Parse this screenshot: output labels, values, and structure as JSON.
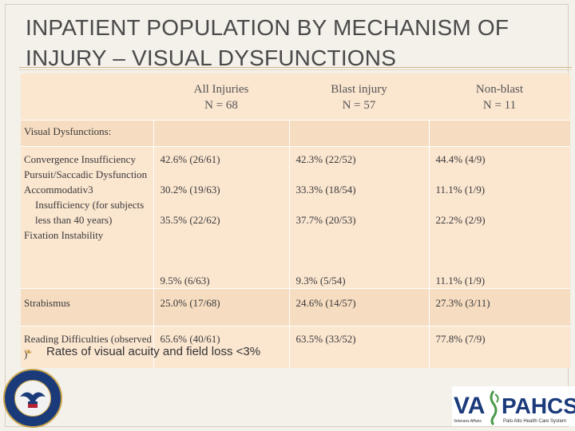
{
  "title": "INPATIENT POPULATION BY MECHANISM OF INJURY – VISUAL DYSFUNCTIONS",
  "table": {
    "headers": [
      {
        "line1": "All Injuries",
        "line2": "N = 68"
      },
      {
        "line1": "Blast injury",
        "line2": "N = 57"
      },
      {
        "line1": "Non-blast",
        "line2": "N = 11"
      }
    ],
    "section_label": "Visual Dysfunctions:",
    "rows": [
      {
        "label": "Convergence Insufficiency",
        "values": [
          "42.6% (26/61)",
          "42.3% (22/52)",
          "44.4% (4/9)"
        ]
      },
      {
        "label": "Pursuit/Saccadic Dysfunction",
        "values": [
          "30.2% (19/63)",
          "33.3% (18/54)",
          "11.1% (1/9)"
        ]
      },
      {
        "label": "Accommodativ3",
        "label_cont": "Insufficiency (for subjects less than 40 years)",
        "values": [
          "35.5% (22/62)",
          "37.7% (20/53)",
          "22.2% (2/9)"
        ]
      },
      {
        "label": "Fixation Instability",
        "values": [
          "9.5% (6/63)",
          "9.3% (5/54)",
          "11.1% (1/9)"
        ]
      },
      {
        "label": "Strabismus",
        "values": [
          "25.0% (17/68)",
          "24.6% (14/57)",
          "27.3% (3/11)"
        ]
      },
      {
        "label": "Reading Difficulties (observed )",
        "values": [
          "65.6% (40/61)",
          "63.5% (33/52)",
          "77.8% (7/9)"
        ]
      }
    ]
  },
  "bullet": {
    "icon": "bullet-glyph",
    "text": "Rates of visual acuity and field loss <3%"
  },
  "logos": {
    "seal": "Department of Veterans Affairs seal",
    "va_logo_text": "VA",
    "pahcs_text": "PAHCS",
    "va_sub": "Veterans Affairs",
    "pahcs_sub": "Palo Alto Health Care System"
  },
  "colors": {
    "header_bg": "#fbe6d0",
    "alt_bg": "#f6dcc0",
    "accent": "#c99a4a",
    "navy": "#1a3a7a"
  }
}
